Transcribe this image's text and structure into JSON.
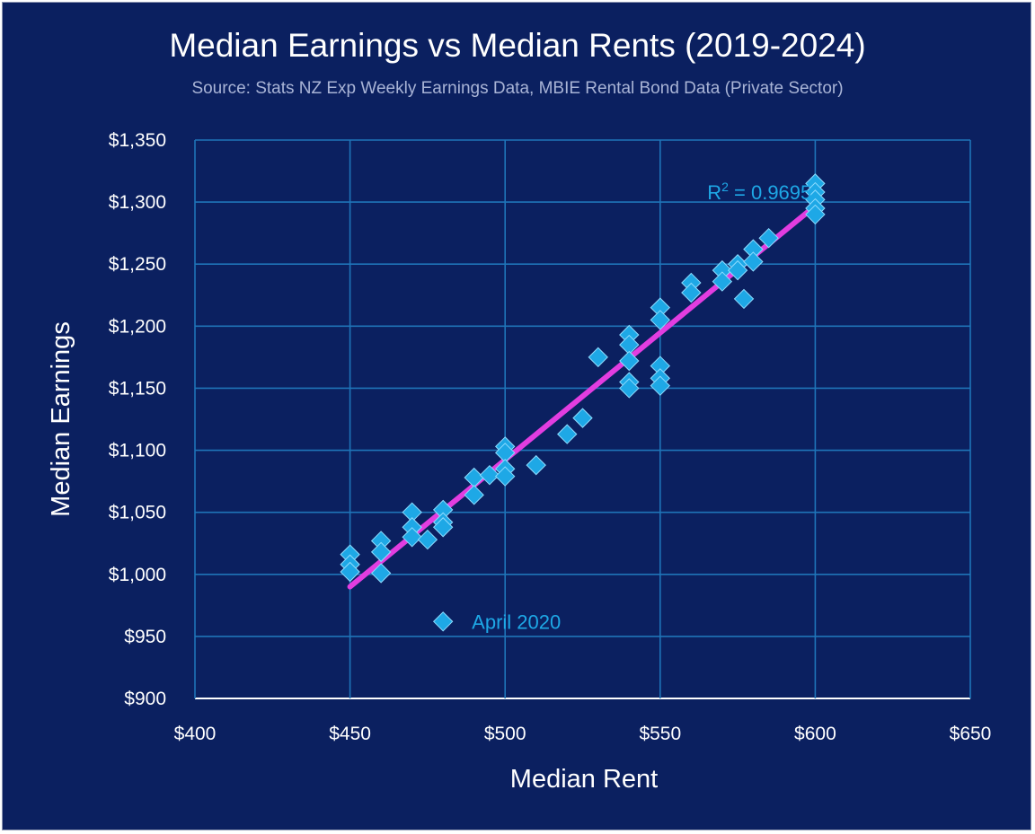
{
  "chart_data": {
    "type": "scatter",
    "title": "Median Earnings vs Median Rents (2019-2024)",
    "subtitle": "Source: Stats NZ Exp Weekly Earnings Data, MBIE Rental Bond Data (Private Sector)",
    "xlabel": "Median Rent",
    "ylabel": "Median Earnings",
    "xlim": [
      400,
      650
    ],
    "ylim": [
      900,
      1350
    ],
    "x_ticks": [
      400,
      450,
      500,
      550,
      600,
      650
    ],
    "y_ticks": [
      900,
      950,
      1000,
      1050,
      1100,
      1150,
      1200,
      1250,
      1300,
      1350
    ],
    "x_tick_labels": [
      "$400",
      "$450",
      "$500",
      "$550",
      "$600",
      "$650"
    ],
    "y_tick_labels": [
      "$900",
      "$950",
      "$1,000",
      "$1,050",
      "$1,100",
      "$1,150",
      "$1,200",
      "$1,250",
      "$1,300",
      "$1,350"
    ],
    "grid": true,
    "series": [
      {
        "name": "Median Earnings",
        "marker": "diamond",
        "color": "#1ea8e6",
        "points": [
          [
            450,
            1016
          ],
          [
            450,
            1008
          ],
          [
            450,
            1002
          ],
          [
            460,
            1027
          ],
          [
            460,
            1018
          ],
          [
            460,
            1001
          ],
          [
            470,
            1050
          ],
          [
            470,
            1038
          ],
          [
            470,
            1030
          ],
          [
            475,
            1028
          ],
          [
            480,
            1052
          ],
          [
            480,
            1042
          ],
          [
            480,
            1038
          ],
          [
            490,
            1078
          ],
          [
            490,
            1064
          ],
          [
            495,
            1080
          ],
          [
            500,
            1103
          ],
          [
            500,
            1098
          ],
          [
            500,
            1085
          ],
          [
            500,
            1079
          ],
          [
            510,
            1088
          ],
          [
            520,
            1113
          ],
          [
            525,
            1126
          ],
          [
            530,
            1175
          ],
          [
            540,
            1193
          ],
          [
            540,
            1185
          ],
          [
            540,
            1172
          ],
          [
            540,
            1155
          ],
          [
            540,
            1150
          ],
          [
            550,
            1215
          ],
          [
            550,
            1205
          ],
          [
            550,
            1168
          ],
          [
            550,
            1158
          ],
          [
            550,
            1152
          ],
          [
            560,
            1235
          ],
          [
            560,
            1227
          ],
          [
            570,
            1245
          ],
          [
            570,
            1236
          ],
          [
            575,
            1250
          ],
          [
            575,
            1245
          ],
          [
            577,
            1222
          ],
          [
            580,
            1262
          ],
          [
            580,
            1252
          ],
          [
            585,
            1271
          ],
          [
            600,
            1315
          ],
          [
            600,
            1308
          ],
          [
            600,
            1302
          ],
          [
            600,
            1295
          ],
          [
            600,
            1290
          ],
          [
            480,
            962
          ]
        ]
      }
    ],
    "trendline": {
      "type": "linear",
      "x": [
        450,
        600
      ],
      "y": [
        990,
        1297
      ],
      "color": "#e23de0",
      "r_squared_label": "R² = 0.9695"
    },
    "annotations": [
      {
        "text": "April 2020",
        "x": 480,
        "y": 962
      }
    ]
  }
}
